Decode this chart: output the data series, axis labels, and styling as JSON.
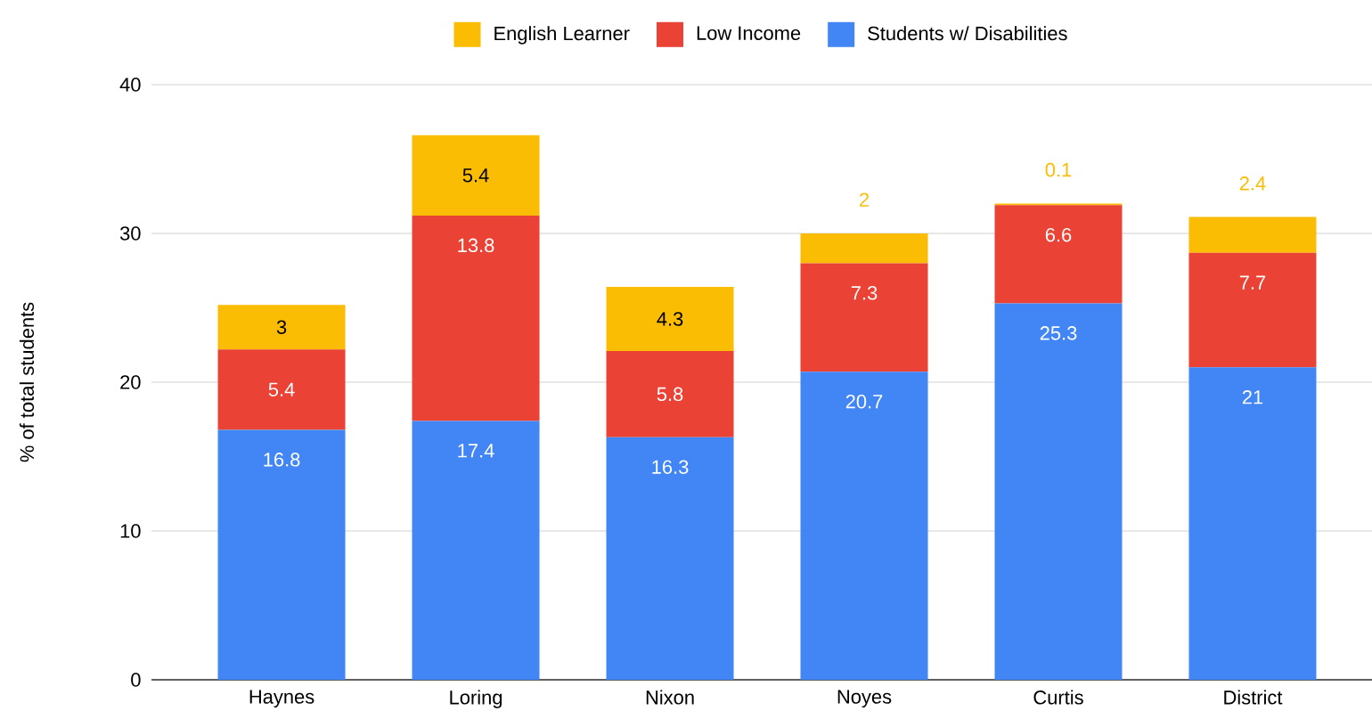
{
  "chart_data": {
    "type": "bar",
    "stacked": true,
    "ylabel": "% of total students",
    "categories": [
      "Haynes",
      "Loring",
      "Nixon",
      "Noyes",
      "Curtis",
      "District"
    ],
    "series": [
      {
        "name": "Students w/ Disabilities",
        "color": "#4285f4",
        "values": [
          16.8,
          17.4,
          16.3,
          20.7,
          25.3,
          21
        ]
      },
      {
        "name": "Low Income",
        "color": "#ea4335",
        "values": [
          5.4,
          13.8,
          5.8,
          7.3,
          6.6,
          7.7
        ]
      },
      {
        "name": "English Learner",
        "color": "#fbbc04",
        "values": [
          3,
          5.4,
          4.3,
          2,
          0.1,
          2.4
        ]
      }
    ],
    "ylim": [
      0,
      40
    ],
    "yticks": [
      0,
      10,
      20,
      30,
      40
    ],
    "grid": "y",
    "legend": "top",
    "data_labels": true
  }
}
